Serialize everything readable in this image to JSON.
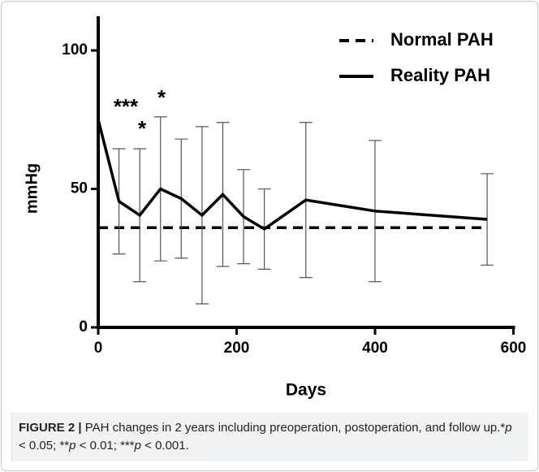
{
  "chart_data": {
    "type": "line",
    "xlabel": "Days",
    "ylabel": "mmHg",
    "xlim": [
      0,
      600
    ],
    "ylim": [
      0,
      110
    ],
    "xticks": [
      0,
      200,
      400,
      600
    ],
    "yticks": [
      0,
      50,
      100
    ],
    "legend": "upper right",
    "series": [
      {
        "name": "Normal PAH",
        "color": "#000000",
        "dashed": true,
        "x": [
          0,
          562
        ],
        "values": [
          36,
          36
        ]
      },
      {
        "name": "Reality PAH",
        "color": "#000000",
        "dashed": false,
        "x": [
          0,
          30,
          60,
          90,
          120,
          150,
          180,
          210,
          240,
          300,
          400,
          562
        ],
        "values": [
          75,
          45.5,
          40.5,
          50,
          46.5,
          40.5,
          48,
          40,
          35.5,
          46,
          42,
          39
        ],
        "errors": [
          null,
          19,
          24,
          26,
          21.5,
          32,
          26,
          17,
          14.5,
          28,
          25.5,
          16.5
        ]
      }
    ],
    "annotations": [
      "***",
      "*",
      "*"
    ]
  },
  "caption": {
    "label": "FIGURE 2 |",
    "segments": [
      {
        "text": " PAH changes in 2  years including preoperation, postoperation, and follow up.*",
        "italic": false
      },
      {
        "text": "p",
        "italic": true
      },
      {
        "text": " < 0.05; **",
        "italic": false
      },
      {
        "text": "p",
        "italic": true
      },
      {
        "text": " < 0.01; ***",
        "italic": false
      },
      {
        "text": "p",
        "italic": true
      },
      {
        "text": " < 0.001.",
        "italic": false
      }
    ]
  }
}
